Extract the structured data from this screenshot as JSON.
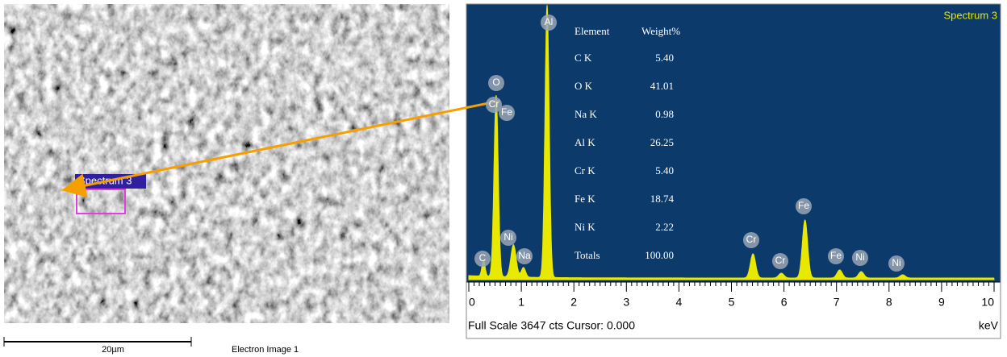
{
  "sem_image": {
    "region_label": "Spectrum 3",
    "scale_bar": "20µm",
    "caption": "Electron Image 1"
  },
  "spectrum": {
    "title": "Spectrum 3",
    "table": {
      "header": [
        "Element",
        "Weight%"
      ],
      "rows": [
        [
          "C K",
          "5.40"
        ],
        [
          "O K",
          "41.01"
        ],
        [
          "Na K",
          "0.98"
        ],
        [
          "Al K",
          "26.25"
        ],
        [
          "Cr K",
          "5.40"
        ],
        [
          "Fe K",
          "18.74"
        ],
        [
          "Ni K",
          "2.22"
        ],
        [
          "Totals",
          "100.00"
        ]
      ]
    },
    "peak_labels": [
      "Al",
      "O",
      "Cr",
      "Fe",
      "C",
      "Ni",
      "Na",
      "Cr",
      "Cr",
      "Fe",
      "Fe",
      "Ni",
      "Ni"
    ],
    "x_ticks": [
      "0",
      "1",
      "2",
      "3",
      "4",
      "5",
      "6",
      "7",
      "8",
      "9",
      "10"
    ],
    "status": "Full Scale 3647 cts Cursor: 0.000",
    "unit": "keV"
  }
}
